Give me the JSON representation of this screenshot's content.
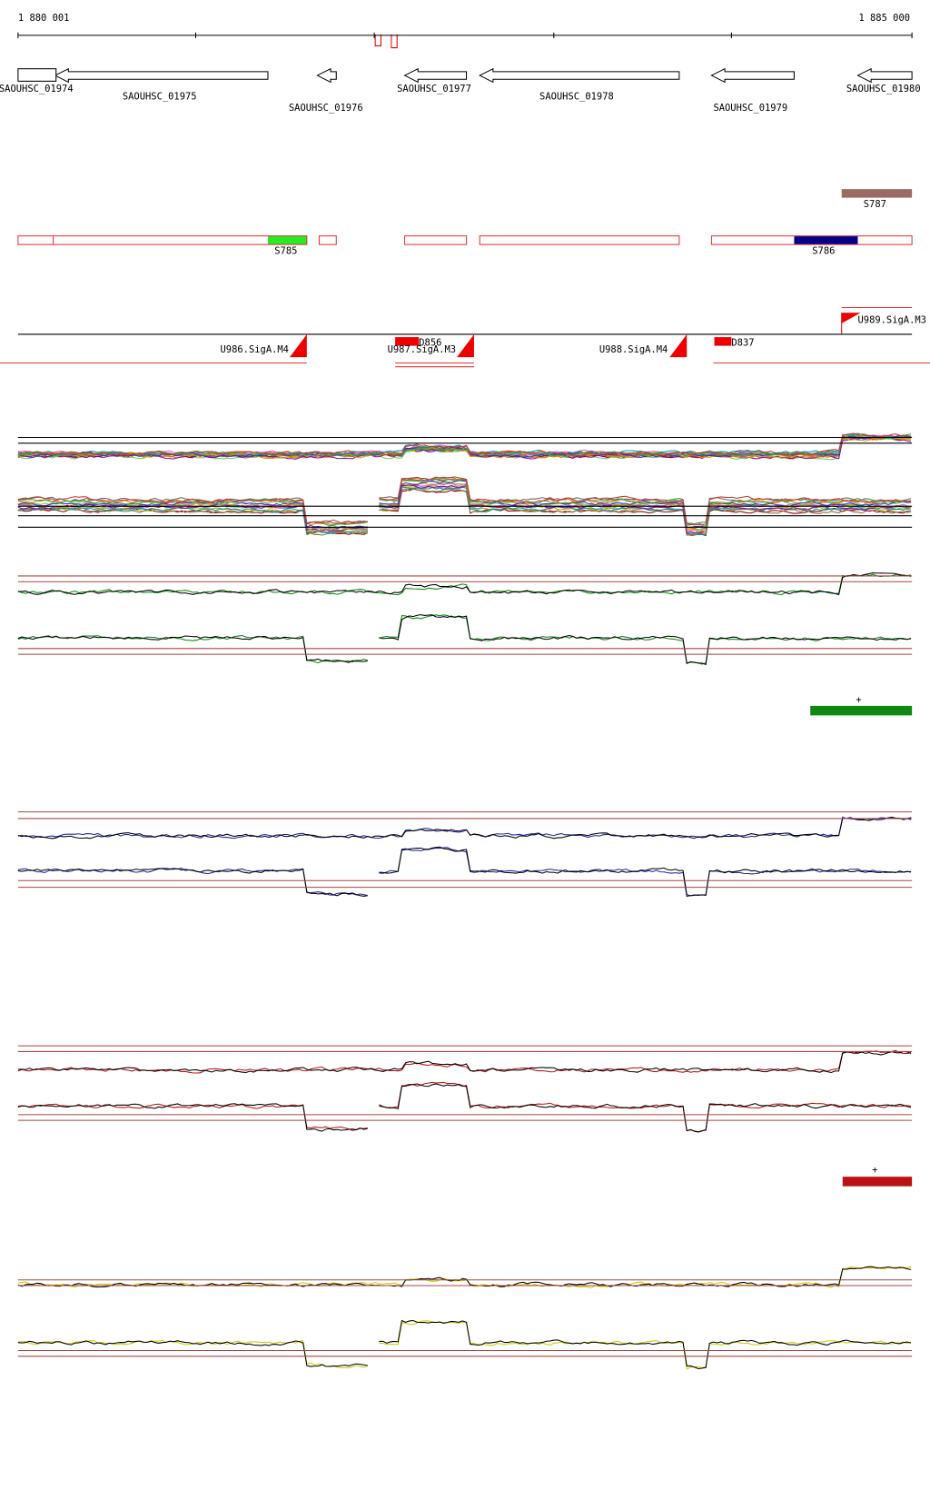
{
  "ruler": {
    "start": "1 880 001",
    "end": "1 885 000"
  },
  "genes": [
    {
      "label": "SAOUHSC_01974"
    },
    {
      "label": "SAOUHSC_01975"
    },
    {
      "label": "SAOUHSC_01976"
    },
    {
      "label": "SAOUHSC_01977"
    },
    {
      "label": "SAOUHSC_01978"
    },
    {
      "label": "SAOUHSC_01979"
    },
    {
      "label": "SAOUHSC_01980"
    }
  ],
  "segments": [
    {
      "label": "S787"
    },
    {
      "label": "S785"
    },
    {
      "label": "S786"
    }
  ],
  "features": [
    {
      "label": "U986.SigA.M4"
    },
    {
      "label": "U987.SigA.M3"
    },
    {
      "label": "D856"
    },
    {
      "label": "U988.SigA.M4"
    },
    {
      "label": "D837"
    },
    {
      "label": "U989.SigA.M3"
    }
  ],
  "tracks": [
    {
      "marker": "+"
    },
    {
      "marker": "+"
    }
  ]
}
